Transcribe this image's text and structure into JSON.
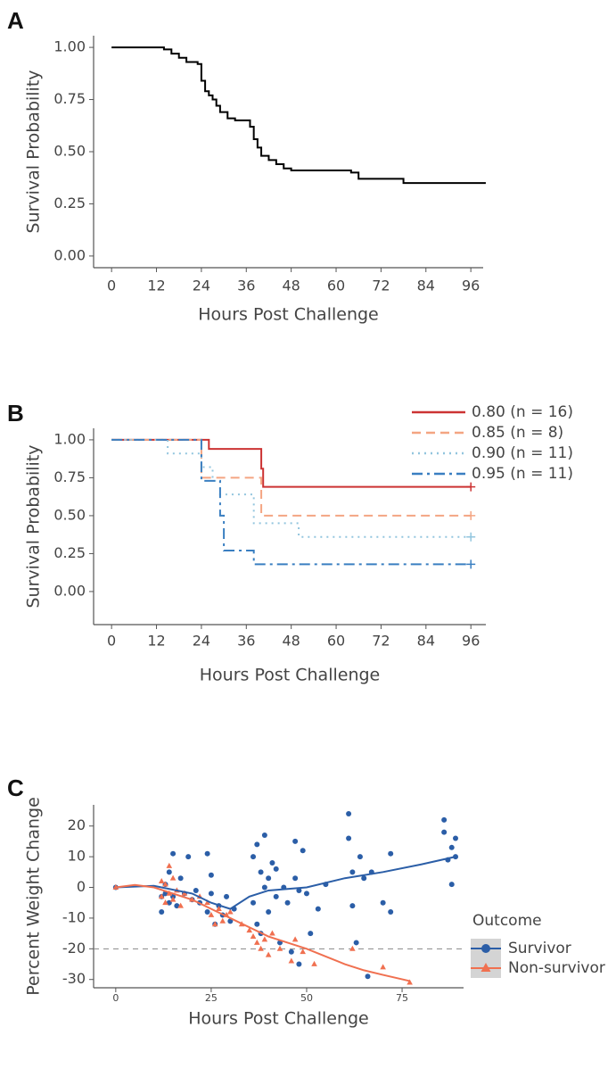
{
  "chart_data": [
    {
      "panel": "A",
      "type": "step",
      "color": "#000000",
      "x": [
        0,
        12,
        14,
        16,
        18,
        20,
        23,
        24,
        25,
        26,
        27,
        28,
        29,
        31,
        33,
        37,
        38,
        39,
        40,
        42,
        44,
        46,
        48,
        64,
        66,
        78,
        100
      ],
      "values": [
        1.0,
        1.0,
        0.99,
        0.97,
        0.95,
        0.93,
        0.92,
        0.84,
        0.79,
        0.77,
        0.75,
        0.72,
        0.69,
        0.66,
        0.65,
        0.62,
        0.56,
        0.52,
        0.48,
        0.46,
        0.44,
        0.42,
        0.41,
        0.4,
        0.37,
        0.35,
        0.35
      ],
      "xlim": [
        -4.8,
        99.3
      ],
      "ylim": [
        -0.056,
        1.056
      ],
      "xticks": [
        0,
        12,
        24,
        36,
        48,
        60,
        72,
        84,
        96
      ],
      "yticks": [
        {
          "value": 0,
          "label": "0.00"
        },
        {
          "value": 0.25,
          "label": "0.25"
        },
        {
          "value": 0.5,
          "label": "0.50"
        },
        {
          "value": 0.75,
          "label": "0.75"
        },
        {
          "value": 1,
          "label": "1.00"
        }
      ],
      "xlabel": "Hours Post Challenge",
      "ylabel": "Survival Probability"
    },
    {
      "panel": "B",
      "type": "step",
      "series": [
        {
          "name": "0.80 (n = 16)",
          "color": "#cc3333",
          "linestyle": "solid",
          "x": [
            0,
            26,
            40,
            40.5,
            96
          ],
          "values": [
            1.0,
            0.94,
            0.81,
            0.69,
            0.69
          ]
        },
        {
          "name": "0.85 (n = 8)",
          "color": "#f4a582",
          "linestyle": "dashed",
          "x": [
            0,
            24,
            40,
            96
          ],
          "values": [
            1.0,
            0.75,
            0.5,
            0.5
          ]
        },
        {
          "name": "0.90 (n = 11)",
          "color": "#92c5de",
          "linestyle": "dotted",
          "x": [
            0,
            15,
            24,
            27,
            29,
            38,
            50,
            96
          ],
          "values": [
            1.0,
            0.91,
            0.82,
            0.73,
            0.64,
            0.45,
            0.36,
            0.36
          ]
        },
        {
          "name": "0.95 (n = 11)",
          "color": "#3a7fc1",
          "linestyle": "dashdot",
          "x": [
            0,
            24,
            25,
            29,
            30,
            38,
            96
          ],
          "values": [
            1.0,
            0.73,
            0.73,
            0.5,
            0.27,
            0.18,
            0.18
          ]
        }
      ],
      "xlim": [
        -4.8,
        100
      ],
      "ylim": [
        -0.218,
        1.076
      ],
      "xticks": [
        0,
        12,
        24,
        36,
        48,
        60,
        72,
        84,
        96
      ],
      "yticks": [
        {
          "value": 0,
          "label": "0.00"
        },
        {
          "value": 0.25,
          "label": "0.25"
        },
        {
          "value": 0.5,
          "label": "0.50"
        },
        {
          "value": 0.75,
          "label": "0.75"
        },
        {
          "value": 1,
          "label": "1.00"
        }
      ],
      "xlabel": "Hours Post Challenge",
      "ylabel": "Survival Probability"
    },
    {
      "panel": "C",
      "type": "scatter",
      "legend_title": "Outcome",
      "hline": -20,
      "series": [
        {
          "name": "Survivor",
          "color": "#2b5ea7",
          "marker": "circle",
          "x": [
            0,
            12,
            12,
            13,
            13,
            14,
            14,
            15,
            15,
            16,
            17,
            18,
            19,
            20,
            21,
            22,
            24,
            24,
            25,
            25,
            26,
            27,
            28,
            29,
            30,
            31,
            36,
            36,
            37,
            37,
            38,
            38,
            39,
            39,
            40,
            40,
            41,
            42,
            42,
            43,
            44,
            45,
            46,
            47,
            47,
            48,
            48,
            49,
            50,
            51,
            53,
            55,
            61,
            61,
            62,
            62,
            63,
            64,
            65,
            66,
            67,
            70,
            72,
            72,
            86,
            86,
            87,
            88,
            88,
            89,
            89
          ],
          "values": [
            0,
            -3,
            -8,
            -2,
            1,
            -5,
            5,
            11,
            -3,
            -6,
            3,
            -2,
            10,
            -4,
            -1,
            -5,
            11,
            -8,
            -2,
            4,
            -12,
            -6,
            -9,
            -3,
            -11,
            -7,
            -5,
            10,
            14,
            -12,
            5,
            -15,
            0,
            17,
            -8,
            3,
            8,
            -3,
            6,
            -18,
            0,
            -5,
            -21,
            15,
            3,
            -1,
            -25,
            12,
            -2,
            -15,
            -7,
            1,
            24,
            16,
            5,
            -6,
            -18,
            10,
            3,
            -29,
            5,
            -5,
            11,
            -8,
            22,
            18,
            9,
            1,
            13,
            16,
            10
          ],
          "trend_x": [
            0,
            10,
            20,
            25,
            30,
            35,
            40,
            50,
            60,
            70,
            80,
            89
          ],
          "trend_values": [
            0,
            0.5,
            -2,
            -5,
            -7,
            -3,
            -1,
            0,
            3,
            5,
            7.5,
            10
          ]
        },
        {
          "name": "Non-survivor",
          "color": "#f07050",
          "marker": "triangle",
          "x": [
            0,
            12,
            12,
            13,
            13,
            14,
            14,
            15,
            15,
            16,
            17,
            18,
            20,
            22,
            24,
            25,
            26,
            27,
            28,
            29,
            30,
            33,
            35,
            36,
            37,
            38,
            39,
            40,
            41,
            43,
            46,
            47,
            49,
            52,
            62,
            70,
            77
          ],
          "values": [
            0,
            2,
            -3,
            -5,
            1,
            -2,
            7,
            -4,
            3,
            -1,
            -6,
            -2,
            -4,
            -3,
            -5,
            -9,
            -12,
            -7,
            -11,
            -9,
            -8,
            -12,
            -14,
            -16,
            -18,
            -20,
            -17,
            -22,
            -15,
            -20,
            -24,
            -17,
            -21,
            -25,
            -20,
            -26,
            -31
          ],
          "trend_x": [
            0,
            5,
            10,
            15,
            20,
            25,
            30,
            35,
            40,
            45,
            50,
            55,
            60,
            65,
            70,
            77
          ],
          "trend_values": [
            0,
            0.8,
            0,
            -2,
            -4,
            -7,
            -10,
            -13,
            -16,
            -18,
            -20,
            -22.5,
            -25,
            -27,
            -28.5,
            -30.5
          ]
        }
      ],
      "xlim": [
        -5.8,
        91.1
      ],
      "ylim": [
        -32.7,
        26.9
      ],
      "xticks": [
        0,
        25,
        50,
        75
      ],
      "yticks": [
        -30,
        -20,
        -10,
        0,
        10,
        20
      ],
      "xlabel": "Hours Post Challenge",
      "ylabel": "Percent Weight Change"
    }
  ]
}
